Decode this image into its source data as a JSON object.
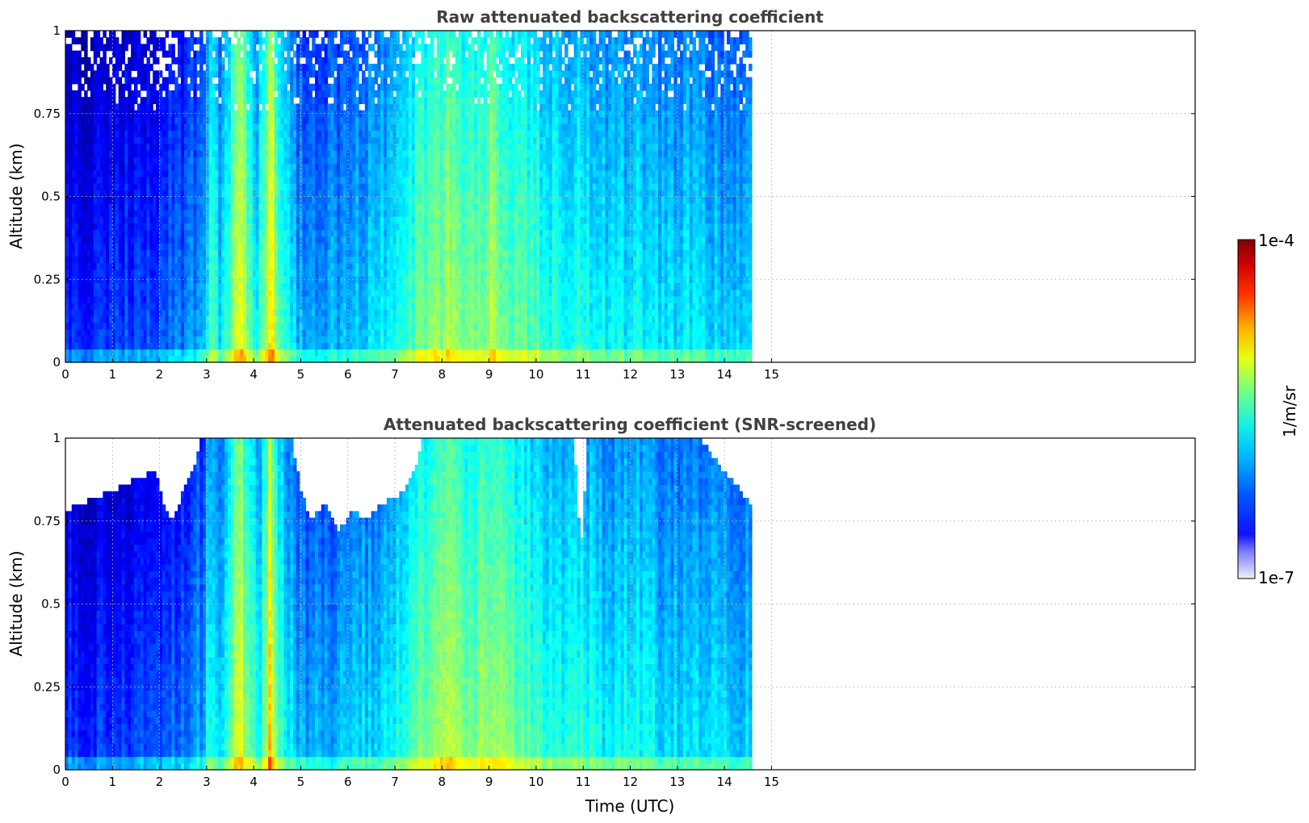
{
  "chart_data": [
    {
      "type": "heatmap",
      "title": "Raw attenuated backscattering coefficient",
      "xlabel": "",
      "ylabel": "Altitude (km)",
      "xlim": [
        0,
        24
      ],
      "ylim": [
        0,
        1
      ],
      "xticks": [
        "0",
        "1",
        "2",
        "3",
        "4",
        "5",
        "6",
        "7",
        "8",
        "9",
        "10",
        "11",
        "12",
        "13",
        "14",
        "15"
      ],
      "yticks": [
        "0",
        "0.25",
        "0.5",
        "0.75",
        "1"
      ],
      "grid": true,
      "data_extent_hours": [
        0,
        14.58
      ],
      "profile_intensity": {
        "x": [
          0,
          0.5,
          1,
          1.5,
          2,
          2.5,
          2.9,
          3.1,
          3.3,
          3.6,
          3.72,
          3.85,
          4.1,
          4.3,
          4.35,
          4.5,
          4.7,
          5,
          5.5,
          6,
          6.5,
          7,
          7.3,
          7.6,
          7.9,
          8.2,
          8.5,
          8.8,
          9.1,
          9.4,
          9.7,
          10,
          10.3,
          10.6,
          10.9,
          11.2,
          11.5,
          11.8,
          12.1,
          12.4,
          12.7,
          13,
          13.3,
          13.6,
          13.9,
          14.2,
          14.58
        ],
        "level": [
          0.18,
          0.18,
          0.2,
          0.2,
          0.22,
          0.25,
          0.3,
          0.45,
          0.35,
          0.55,
          0.65,
          0.5,
          0.4,
          0.55,
          0.7,
          0.5,
          0.4,
          0.3,
          0.3,
          0.32,
          0.35,
          0.4,
          0.45,
          0.5,
          0.52,
          0.55,
          0.5,
          0.52,
          0.55,
          0.5,
          0.48,
          0.45,
          0.42,
          0.4,
          0.42,
          0.4,
          0.38,
          0.38,
          0.4,
          0.38,
          0.35,
          0.35,
          0.38,
          0.36,
          0.35,
          0.34,
          0.34
        ]
      }
    },
    {
      "type": "heatmap",
      "title": "Attenuated backscattering coefficient (SNR-screened)",
      "xlabel": "Time (UTC)",
      "ylabel": "Altitude (km)",
      "xlim": [
        0,
        24
      ],
      "ylim": [
        0,
        1
      ],
      "xticks": [
        "0",
        "1",
        "2",
        "3",
        "4",
        "5",
        "6",
        "7",
        "8",
        "9",
        "10",
        "11",
        "12",
        "13",
        "14",
        "15"
      ],
      "yticks": [
        "0",
        "0.25",
        "0.5",
        "0.75",
        "1"
      ],
      "grid": true,
      "data_extent_hours": [
        0,
        14.58
      ],
      "screen_top_km": {
        "x": [
          0,
          0.3,
          0.6,
          1,
          1.5,
          1.9,
          2.1,
          2.3,
          2.5,
          2.7,
          2.9,
          3.2,
          3.6,
          4.0,
          4.4,
          4.8,
          5.0,
          5.2,
          5.5,
          5.8,
          6.1,
          6.4,
          6.7,
          7.0,
          7.2,
          7.4,
          7.6,
          8,
          9,
          10,
          10.3,
          10.6,
          10.8,
          10.95,
          11.1,
          11.4,
          12,
          13,
          13.5,
          14,
          14.58
        ],
        "top": [
          0.78,
          0.8,
          0.82,
          0.84,
          0.88,
          0.9,
          0.8,
          0.75,
          0.85,
          0.9,
          1,
          1,
          1,
          1,
          1,
          1,
          0.85,
          0.75,
          0.8,
          0.72,
          0.78,
          0.75,
          0.8,
          0.82,
          0.85,
          0.9,
          1,
          1,
          1,
          1,
          1,
          1,
          1,
          0.65,
          1,
          1,
          1,
          1,
          1,
          0.9,
          0.8
        ]
      }
    }
  ],
  "colorbar": {
    "label": "1/m/sr",
    "min_label": "1e-7",
    "max_label": "1e-4",
    "scale": "log",
    "colormap": "jet"
  }
}
